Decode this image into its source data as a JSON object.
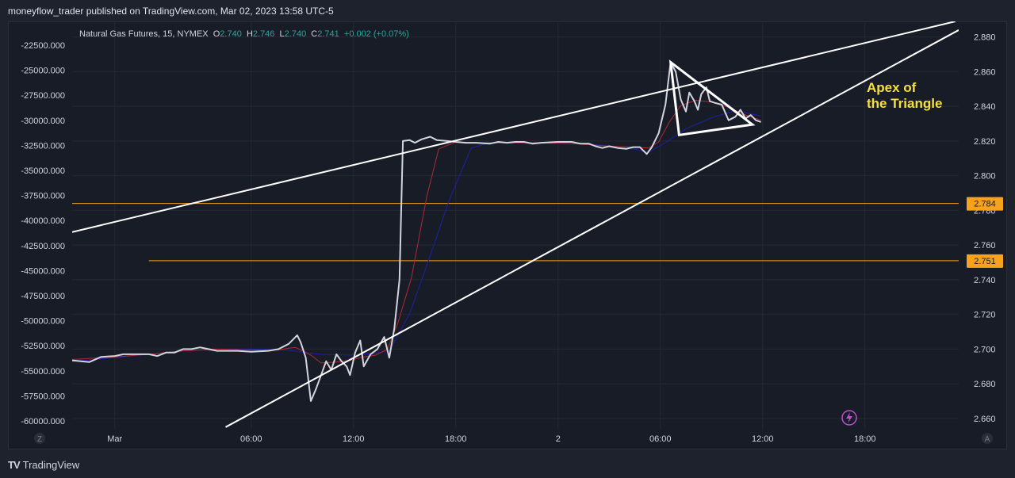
{
  "header": {
    "attribution": "moneyflow_trader published on TradingView.com, Mar 02, 2023 13:58 UTC-5"
  },
  "footer": {
    "logo_text": "TradingView"
  },
  "chart_data": {
    "type": "line",
    "legend": {
      "symbol": "Natural Gas Futures, 15, NYMEX",
      "o_label": "O",
      "o_value": "2.740",
      "h_label": "H",
      "h_value": "2.746",
      "l_label": "L",
      "l_value": "2.740",
      "c_label": "C",
      "c_value": "2.741",
      "change": "+0.002 (+0.07%)"
    },
    "right_axis": {
      "ticks": [
        "2.880",
        "2.860",
        "2.840",
        "2.820",
        "2.800",
        "2.780",
        "2.760",
        "2.740",
        "2.720",
        "2.700",
        "2.680",
        "2.660"
      ],
      "ylim": [
        2.654,
        2.889
      ]
    },
    "left_axis": {
      "ticks": [
        "-22500.000",
        "-25000.000",
        "-27500.000",
        "-30000.000",
        "-32500.000",
        "-35000.000",
        "-37500.000",
        "-40000.000",
        "-42500.000",
        "-45000.000",
        "-47500.000",
        "-50000.000",
        "-52500.000",
        "-55000.000",
        "-57500.000",
        "-60000.000"
      ]
    },
    "x_axis": {
      "ticks": [
        "Mar",
        "06:00",
        "12:00",
        "18:00",
        "2",
        "06:00",
        "12:00",
        "18:00"
      ],
      "tick_hours": [
        -2,
        6,
        12,
        18,
        24,
        30,
        36,
        42
      ],
      "xlim": [
        -4.5,
        47.5
      ],
      "left_corner": "Z",
      "right_corner": "A"
    },
    "price_lines": [
      {
        "value": 2.784,
        "label": "2.784",
        "start_hour": -4.5
      },
      {
        "value": 2.751,
        "label": "2.751",
        "start_hour": 0
      }
    ],
    "trendlines": [
      {
        "name": "",
        "points": [
          [
            -4.5,
            2.7675
          ],
          [
            47.3,
            2.889
          ]
        ]
      },
      {
        "name": "",
        "points": [
          [
            4.5,
            2.655
          ],
          [
            47.5,
            2.884
          ]
        ]
      }
    ],
    "triangle": [
      [
        30.6,
        2.8655
      ],
      [
        31.1,
        2.8235
      ],
      [
        35.4,
        2.8295
      ]
    ],
    "annotation": {
      "line1": "Apex of",
      "line2": "the Triangle"
    },
    "series": [
      {
        "name": "",
        "color": "#d1d4dc",
        "points": [
          [
            -4.5,
            2.6935
          ],
          [
            -3.5,
            2.6925
          ],
          [
            -2.8,
            2.6955
          ],
          [
            -2,
            2.696
          ],
          [
            -1.5,
            2.697
          ],
          [
            -1,
            2.697
          ],
          [
            0,
            2.697
          ],
          [
            0.5,
            2.696
          ],
          [
            1,
            2.698
          ],
          [
            1.5,
            2.698
          ],
          [
            2,
            2.7
          ],
          [
            2.5,
            2.7
          ],
          [
            3,
            2.701
          ],
          [
            4,
            2.699
          ],
          [
            4.7,
            2.699
          ],
          [
            5.2,
            2.699
          ],
          [
            6,
            2.6985
          ],
          [
            7,
            2.699
          ],
          [
            7.6,
            2.7
          ],
          [
            8.2,
            2.703
          ],
          [
            8.7,
            2.708
          ],
          [
            8.9,
            2.704
          ],
          [
            9.2,
            2.695
          ],
          [
            9.5,
            2.67
          ],
          [
            9.8,
            2.677
          ],
          [
            10.4,
            2.693
          ],
          [
            10.7,
            2.688
          ],
          [
            11,
            2.697
          ],
          [
            11.3,
            2.693
          ],
          [
            11.6,
            2.69
          ],
          [
            11.8,
            2.685
          ],
          [
            12.1,
            2.698
          ],
          [
            12.4,
            2.705
          ],
          [
            12.6,
            2.69
          ],
          [
            13,
            2.697
          ],
          [
            13.4,
            2.7
          ],
          [
            13.8,
            2.707
          ],
          [
            14.1,
            2.695
          ],
          [
            14.4,
            2.712
          ],
          [
            14.7,
            2.74
          ],
          [
            14.9,
            2.82
          ],
          [
            15.3,
            2.8205
          ],
          [
            15.6,
            2.819
          ],
          [
            16,
            2.821
          ],
          [
            16.5,
            2.8225
          ],
          [
            16.9,
            2.8205
          ],
          [
            17.5,
            2.82
          ],
          [
            18,
            2.8195
          ],
          [
            18.6,
            2.819
          ],
          [
            19.2,
            2.819
          ],
          [
            20,
            2.8185
          ],
          [
            20.5,
            2.8195
          ],
          [
            21,
            2.819
          ],
          [
            21.5,
            2.8195
          ],
          [
            22,
            2.8195
          ],
          [
            22.5,
            2.8185
          ],
          [
            23,
            2.819
          ],
          [
            24,
            2.8195
          ],
          [
            24.8,
            2.8195
          ],
          [
            25.3,
            2.8185
          ],
          [
            25.8,
            2.8185
          ],
          [
            26.2,
            2.817
          ],
          [
            26.6,
            2.816
          ],
          [
            27,
            2.817
          ],
          [
            27.5,
            2.816
          ],
          [
            28,
            2.8155
          ],
          [
            28.4,
            2.8165
          ],
          [
            28.8,
            2.8165
          ],
          [
            29.2,
            2.8125
          ],
          [
            29.5,
            2.8165
          ],
          [
            29.9,
            2.8245
          ],
          [
            30.3,
            2.841
          ],
          [
            30.6,
            2.8655
          ],
          [
            30.9,
            2.86
          ],
          [
            31.2,
            2.844
          ],
          [
            31.5,
            2.837
          ],
          [
            31.7,
            2.848
          ],
          [
            32,
            2.843
          ],
          [
            32.2,
            2.838
          ],
          [
            32.4,
            2.847
          ],
          [
            32.7,
            2.851
          ],
          [
            32.9,
            2.843
          ],
          [
            33.2,
            2.842
          ],
          [
            33.6,
            2.841
          ],
          [
            34,
            2.832
          ],
          [
            34.4,
            2.834
          ],
          [
            34.7,
            2.838
          ],
          [
            35,
            2.833
          ],
          [
            35.3,
            2.835
          ],
          [
            35.6,
            2.832
          ],
          [
            35.9,
            2.831
          ]
        ]
      },
      {
        "name": "",
        "color": "#b22833",
        "points": [
          [
            -4.5,
            2.694
          ],
          [
            -2,
            2.6955
          ],
          [
            0,
            2.697
          ],
          [
            2,
            2.699
          ],
          [
            4,
            2.7
          ],
          [
            6,
            2.6995
          ],
          [
            7.6,
            2.6995
          ],
          [
            8.2,
            2.7005
          ],
          [
            8.6,
            2.701
          ],
          [
            9,
            2.699
          ],
          [
            9.5,
            2.6965
          ],
          [
            10.1,
            2.692
          ],
          [
            11,
            2.6925
          ],
          [
            11.8,
            2.6935
          ],
          [
            12.6,
            2.6955
          ],
          [
            13.3,
            2.6965
          ],
          [
            14,
            2.7
          ],
          [
            14.6,
            2.715
          ],
          [
            15.4,
            2.741
          ],
          [
            16.3,
            2.788
          ],
          [
            17,
            2.8155
          ],
          [
            18,
            2.8195
          ],
          [
            19,
            2.819
          ],
          [
            21,
            2.819
          ],
          [
            23,
            2.819
          ],
          [
            25,
            2.8185
          ],
          [
            27,
            2.817
          ],
          [
            28.5,
            2.8165
          ],
          [
            29.3,
            2.816
          ],
          [
            29.9,
            2.8195
          ],
          [
            30.5,
            2.8305
          ],
          [
            31.2,
            2.8405
          ],
          [
            32.1,
            2.8435
          ],
          [
            33,
            2.8425
          ],
          [
            34,
            2.8395
          ],
          [
            35,
            2.835
          ],
          [
            35.9,
            2.832
          ]
        ]
      },
      {
        "name": "",
        "color": "#1f1fa8",
        "points": [
          [
            -4.5,
            2.693
          ],
          [
            -2,
            2.695
          ],
          [
            0,
            2.697
          ],
          [
            2,
            2.699
          ],
          [
            4,
            2.7
          ],
          [
            6,
            2.7
          ],
          [
            8,
            2.6995
          ],
          [
            10,
            2.697
          ],
          [
            11.8,
            2.6965
          ],
          [
            13.2,
            2.6975
          ],
          [
            14.1,
            2.699
          ],
          [
            15.3,
            2.7205
          ],
          [
            16.4,
            2.751
          ],
          [
            17.6,
            2.7855
          ],
          [
            18.9,
            2.816
          ],
          [
            20,
            2.819
          ],
          [
            22,
            2.819
          ],
          [
            24,
            2.819
          ],
          [
            26,
            2.818
          ],
          [
            28,
            2.8165
          ],
          [
            29.3,
            2.8135
          ],
          [
            30.2,
            2.8185
          ],
          [
            31.5,
            2.827
          ],
          [
            33,
            2.8335
          ],
          [
            34.4,
            2.8375
          ],
          [
            35.9,
            2.8345
          ]
        ]
      }
    ]
  }
}
